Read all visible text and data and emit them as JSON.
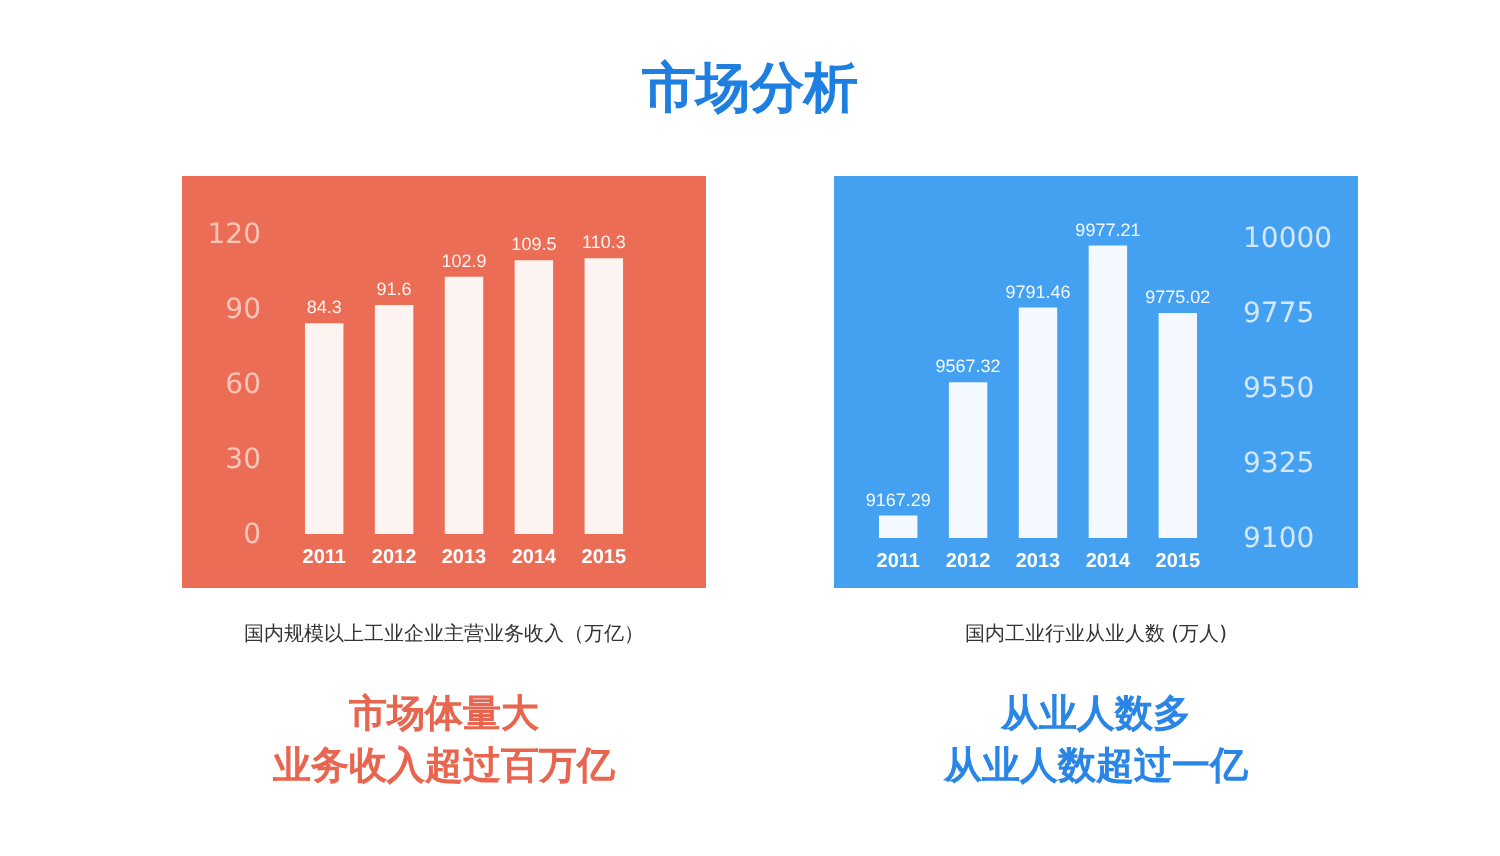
{
  "chart_data": [
    {
      "type": "bar",
      "title": "市场分析",
      "xlabel": "国内规模以上工业企业主营业务收入（万亿）",
      "annotations": [
        "市场体量大",
        "业务收入超过百万亿"
      ],
      "categories": [
        "2011",
        "2012",
        "2013",
        "2014",
        "2015"
      ],
      "values": [
        84.3,
        91.6,
        102.9,
        109.5,
        110.3
      ],
      "color": "#fdf3f0",
      "ylim": [
        0,
        120
      ],
      "yticks": [
        0,
        30,
        60,
        90,
        120
      ],
      "data_labels": true
    },
    {
      "type": "bar",
      "xlabel": "国内工业行业从业人数 (万人)",
      "annotations": [
        "从业人数多",
        "从业人数超过一亿"
      ],
      "categories": [
        "2011",
        "2012",
        "2013",
        "2014",
        "2015"
      ],
      "series": [
        {
          "values": [
            9167.29,
            9567.32,
            9791.46,
            9977.21,
            9775.02
          ],
          "color": "#f3f9ff",
          "axis": "y2"
        }
      ],
      "y2lim": [
        9100,
        10000
      ],
      "y2ticks": [
        9100,
        9325,
        9550,
        9775,
        10000
      ],
      "data_labels": true
    }
  ]
}
